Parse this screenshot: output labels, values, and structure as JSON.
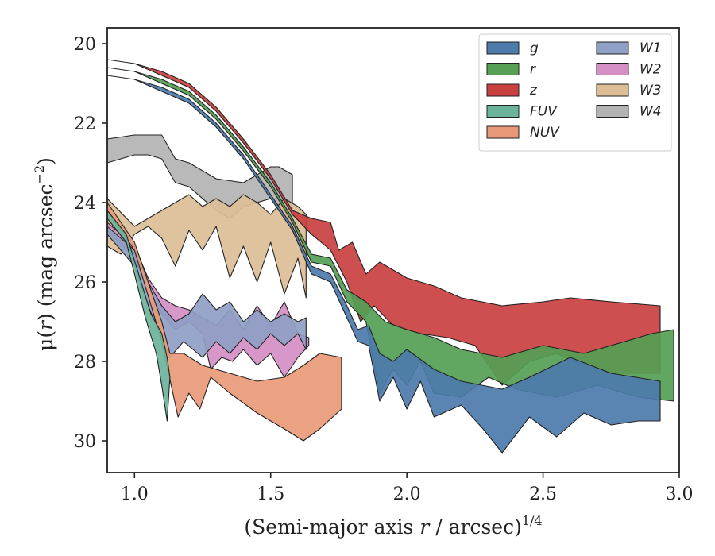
{
  "chart_data": {
    "type": "area",
    "xlabel": "(Semi-major axis r / arcsec)1/4",
    "xlabel_parts": {
      "main": "(Semi-major axis ",
      "var": "r",
      "rest": " / arcsec)",
      "sup": "1/4"
    },
    "ylabel_parts": {
      "mu": "μ(",
      "var": "r",
      "rest": ") (mag arcsec",
      "sup": "−2",
      "close": ")"
    },
    "xlim": [
      0.9,
      3.0
    ],
    "ylim": [
      30.8,
      19.6
    ],
    "y_inverted": true,
    "xticks": [
      1.0,
      1.5,
      2.0,
      2.5,
      3.0
    ],
    "xtick_labels": [
      "1.0",
      "1.5",
      "2.0",
      "2.5",
      "3.0"
    ],
    "yticks": [
      20,
      22,
      24,
      26,
      28,
      30
    ],
    "ytick_labels": [
      "20",
      "22",
      "24",
      "26",
      "28",
      "30"
    ],
    "grid": false,
    "legend_placement": "top-right",
    "legend_columns": 2,
    "series": [
      {
        "name": "g",
        "color": "#4c7bab",
        "upper": [
          [
            0.9,
            20.8
          ],
          [
            1.0,
            20.9
          ],
          [
            1.1,
            21.1
          ],
          [
            1.2,
            21.4
          ],
          [
            1.3,
            22.0
          ],
          [
            1.4,
            22.8
          ],
          [
            1.5,
            23.8
          ],
          [
            1.58,
            24.6
          ],
          [
            1.65,
            25.6
          ],
          [
            1.72,
            25.8
          ],
          [
            1.78,
            26.6
          ],
          [
            1.82,
            27.2
          ],
          [
            1.86,
            27.1
          ],
          [
            1.9,
            27.8
          ],
          [
            1.95,
            28.0
          ],
          [
            2.0,
            27.7
          ],
          [
            2.1,
            28.2
          ],
          [
            2.2,
            28.5
          ],
          [
            2.35,
            28.7
          ],
          [
            2.45,
            28.4
          ],
          [
            2.6,
            27.9
          ],
          [
            2.75,
            28.3
          ],
          [
            2.93,
            28.5
          ]
        ],
        "lower": [
          [
            0.9,
            20.8
          ],
          [
            1.0,
            20.9
          ],
          [
            1.1,
            21.2
          ],
          [
            1.2,
            21.5
          ],
          [
            1.3,
            22.1
          ],
          [
            1.4,
            22.9
          ],
          [
            1.5,
            23.9
          ],
          [
            1.58,
            24.7
          ],
          [
            1.65,
            25.8
          ],
          [
            1.72,
            26.0
          ],
          [
            1.78,
            26.9
          ],
          [
            1.82,
            27.5
          ],
          [
            1.86,
            27.6
          ],
          [
            1.9,
            29.0
          ],
          [
            1.95,
            28.4
          ],
          [
            2.0,
            29.2
          ],
          [
            2.05,
            28.5
          ],
          [
            2.1,
            29.4
          ],
          [
            2.2,
            29.1
          ],
          [
            2.28,
            29.7
          ],
          [
            2.35,
            30.3
          ],
          [
            2.45,
            29.4
          ],
          [
            2.55,
            29.9
          ],
          [
            2.65,
            29.3
          ],
          [
            2.75,
            29.6
          ],
          [
            2.85,
            29.5
          ],
          [
            2.93,
            29.5
          ]
        ]
      },
      {
        "name": "r",
        "color": "#55a054",
        "upper": [
          [
            0.9,
            20.6
          ],
          [
            1.0,
            20.7
          ],
          [
            1.1,
            20.9
          ],
          [
            1.2,
            21.2
          ],
          [
            1.3,
            21.8
          ],
          [
            1.4,
            22.6
          ],
          [
            1.5,
            23.5
          ],
          [
            1.58,
            24.4
          ],
          [
            1.65,
            25.3
          ],
          [
            1.72,
            25.4
          ],
          [
            1.78,
            26.2
          ],
          [
            1.85,
            26.5
          ],
          [
            1.92,
            27.0
          ],
          [
            2.0,
            27.2
          ],
          [
            2.1,
            27.4
          ],
          [
            2.2,
            27.7
          ],
          [
            2.35,
            27.9
          ],
          [
            2.5,
            27.6
          ],
          [
            2.65,
            27.8
          ],
          [
            2.8,
            27.5
          ],
          [
            2.9,
            27.3
          ],
          [
            2.98,
            27.2
          ]
        ],
        "lower": [
          [
            0.9,
            20.6
          ],
          [
            1.0,
            20.7
          ],
          [
            1.1,
            21.0
          ],
          [
            1.2,
            21.3
          ],
          [
            1.3,
            21.9
          ],
          [
            1.4,
            22.7
          ],
          [
            1.5,
            23.6
          ],
          [
            1.58,
            24.5
          ],
          [
            1.65,
            25.5
          ],
          [
            1.72,
            25.6
          ],
          [
            1.78,
            26.5
          ],
          [
            1.85,
            27.0
          ],
          [
            1.9,
            28.8
          ],
          [
            1.95,
            28.2
          ],
          [
            2.0,
            28.6
          ],
          [
            2.05,
            28.0
          ],
          [
            2.1,
            28.8
          ],
          [
            2.2,
            28.9
          ],
          [
            2.3,
            28.4
          ],
          [
            2.4,
            28.7
          ],
          [
            2.55,
            28.9
          ],
          [
            2.7,
            28.6
          ],
          [
            2.85,
            28.9
          ],
          [
            2.98,
            29.0
          ]
        ]
      },
      {
        "name": "z",
        "color": "#c94040",
        "upper": [
          [
            0.9,
            20.4
          ],
          [
            1.0,
            20.5
          ],
          [
            1.1,
            20.7
          ],
          [
            1.2,
            21.0
          ],
          [
            1.3,
            21.6
          ],
          [
            1.4,
            22.4
          ],
          [
            1.5,
            23.3
          ],
          [
            1.58,
            24.2
          ],
          [
            1.65,
            24.4
          ],
          [
            1.72,
            24.5
          ],
          [
            1.75,
            25.2
          ],
          [
            1.8,
            25.0
          ],
          [
            1.85,
            25.8
          ],
          [
            1.9,
            25.5
          ],
          [
            2.0,
            25.9
          ],
          [
            2.1,
            26.1
          ],
          [
            2.2,
            26.4
          ],
          [
            2.35,
            26.6
          ],
          [
            2.5,
            26.5
          ],
          [
            2.6,
            26.4
          ],
          [
            2.75,
            26.5
          ],
          [
            2.93,
            26.6
          ]
        ],
        "lower": [
          [
            0.9,
            20.4
          ],
          [
            1.0,
            20.5
          ],
          [
            1.1,
            20.8
          ],
          [
            1.2,
            21.1
          ],
          [
            1.3,
            21.7
          ],
          [
            1.4,
            22.5
          ],
          [
            1.5,
            23.4
          ],
          [
            1.58,
            24.3
          ],
          [
            1.65,
            24.8
          ],
          [
            1.72,
            25.2
          ],
          [
            1.78,
            26.0
          ],
          [
            1.83,
            27.0
          ],
          [
            1.88,
            26.6
          ],
          [
            1.95,
            27.1
          ],
          [
            2.05,
            27.3
          ],
          [
            2.15,
            27.4
          ],
          [
            2.25,
            27.6
          ],
          [
            2.35,
            28.6
          ],
          [
            2.45,
            28.0
          ],
          [
            2.55,
            27.8
          ],
          [
            2.7,
            28.3
          ],
          [
            2.93,
            28.3
          ]
        ]
      },
      {
        "name": "FUV",
        "color": "#6bb39a",
        "upper": [
          [
            0.9,
            24.2
          ],
          [
            0.97,
            24.8
          ],
          [
            1.02,
            25.9
          ],
          [
            1.06,
            26.8
          ],
          [
            1.1,
            27.3
          ],
          [
            1.12,
            27.9
          ],
          [
            1.13,
            28.4
          ]
        ],
        "lower": [
          [
            0.9,
            24.4
          ],
          [
            0.97,
            25.0
          ],
          [
            1.0,
            25.8
          ],
          [
            1.04,
            26.9
          ],
          [
            1.08,
            27.8
          ],
          [
            1.1,
            28.6
          ],
          [
            1.12,
            29.5
          ]
        ]
      },
      {
        "name": "NUV",
        "color": "#e89a78",
        "upper": [
          [
            0.9,
            24.0
          ],
          [
            1.0,
            25.0
          ],
          [
            1.1,
            27.0
          ],
          [
            1.13,
            27.8
          ],
          [
            1.18,
            27.8
          ],
          [
            1.25,
            28.1
          ],
          [
            1.35,
            28.3
          ],
          [
            1.45,
            28.5
          ],
          [
            1.55,
            28.4
          ],
          [
            1.62,
            28.1
          ],
          [
            1.68,
            27.8
          ],
          [
            1.76,
            27.9
          ]
        ],
        "lower": [
          [
            0.9,
            24.2
          ],
          [
            1.0,
            25.2
          ],
          [
            1.1,
            27.5
          ],
          [
            1.16,
            29.4
          ],
          [
            1.2,
            28.8
          ],
          [
            1.24,
            29.2
          ],
          [
            1.28,
            28.4
          ],
          [
            1.35,
            28.8
          ],
          [
            1.45,
            29.3
          ],
          [
            1.55,
            29.7
          ],
          [
            1.62,
            30.0
          ],
          [
            1.68,
            29.7
          ],
          [
            1.76,
            29.2
          ]
        ]
      },
      {
        "name": "W1",
        "color": "#8fa0c4",
        "upper": [
          [
            0.9,
            24.6
          ],
          [
            1.0,
            25.2
          ],
          [
            1.05,
            26.0
          ],
          [
            1.1,
            26.6
          ],
          [
            1.15,
            27.0
          ],
          [
            1.2,
            26.8
          ],
          [
            1.25,
            26.3
          ],
          [
            1.3,
            26.7
          ],
          [
            1.35,
            26.5
          ],
          [
            1.4,
            27.0
          ],
          [
            1.45,
            26.7
          ],
          [
            1.5,
            27.0
          ],
          [
            1.55,
            26.8
          ],
          [
            1.6,
            27.0
          ],
          [
            1.63,
            26.9
          ]
        ],
        "lower": [
          [
            0.9,
            24.8
          ],
          [
            1.0,
            25.6
          ],
          [
            1.05,
            26.6
          ],
          [
            1.1,
            27.4
          ],
          [
            1.13,
            27.9
          ],
          [
            1.18,
            27.5
          ],
          [
            1.25,
            27.9
          ],
          [
            1.3,
            27.5
          ],
          [
            1.35,
            27.8
          ],
          [
            1.4,
            27.4
          ],
          [
            1.45,
            27.7
          ],
          [
            1.5,
            27.3
          ],
          [
            1.55,
            27.6
          ],
          [
            1.6,
            27.3
          ],
          [
            1.63,
            27.7
          ]
        ]
      },
      {
        "name": "W2",
        "color": "#d48fc4",
        "upper": [
          [
            0.9,
            24.5
          ],
          [
            1.0,
            25.1
          ],
          [
            1.05,
            25.9
          ],
          [
            1.1,
            26.4
          ],
          [
            1.15,
            26.6
          ],
          [
            1.2,
            26.7
          ],
          [
            1.25,
            26.9
          ],
          [
            1.3,
            27.1
          ],
          [
            1.35,
            26.7
          ],
          [
            1.4,
            27.2
          ],
          [
            1.45,
            26.6
          ],
          [
            1.5,
            27.1
          ],
          [
            1.55,
            26.5
          ],
          [
            1.6,
            27.3
          ],
          [
            1.64,
            27.4
          ]
        ],
        "lower": [
          [
            0.9,
            24.7
          ],
          [
            1.0,
            25.4
          ],
          [
            1.05,
            26.2
          ],
          [
            1.1,
            26.8
          ],
          [
            1.15,
            27.2
          ],
          [
            1.2,
            27.0
          ],
          [
            1.25,
            27.3
          ],
          [
            1.28,
            28.2
          ],
          [
            1.32,
            27.9
          ],
          [
            1.36,
            28.0
          ],
          [
            1.4,
            27.7
          ],
          [
            1.45,
            28.1
          ],
          [
            1.5,
            27.8
          ],
          [
            1.55,
            28.4
          ],
          [
            1.6,
            27.9
          ],
          [
            1.64,
            27.6
          ]
        ]
      },
      {
        "name": "W3",
        "color": "#dcbd96",
        "upper": [
          [
            0.9,
            23.9
          ],
          [
            1.0,
            24.6
          ],
          [
            1.05,
            24.4
          ],
          [
            1.1,
            24.2
          ],
          [
            1.15,
            24.0
          ],
          [
            1.2,
            23.8
          ],
          [
            1.25,
            24.1
          ],
          [
            1.3,
            23.9
          ],
          [
            1.35,
            24.1
          ],
          [
            1.4,
            23.8
          ],
          [
            1.45,
            24.0
          ],
          [
            1.5,
            24.3
          ],
          [
            1.55,
            23.9
          ],
          [
            1.6,
            24.1
          ],
          [
            1.63,
            24.3
          ]
        ],
        "lower": [
          [
            0.9,
            25.1
          ],
          [
            0.95,
            25.3
          ],
          [
            1.0,
            24.8
          ],
          [
            1.05,
            24.6
          ],
          [
            1.1,
            24.9
          ],
          [
            1.15,
            25.6
          ],
          [
            1.2,
            24.7
          ],
          [
            1.25,
            25.2
          ],
          [
            1.3,
            24.6
          ],
          [
            1.35,
            25.9
          ],
          [
            1.4,
            25.1
          ],
          [
            1.45,
            26.0
          ],
          [
            1.5,
            25.0
          ],
          [
            1.55,
            26.3
          ],
          [
            1.6,
            25.4
          ],
          [
            1.63,
            26.4
          ]
        ]
      },
      {
        "name": "W4",
        "color": "#b3b3b3",
        "upper": [
          [
            0.9,
            22.4
          ],
          [
            1.0,
            22.3
          ],
          [
            1.05,
            22.3
          ],
          [
            1.1,
            22.3
          ],
          [
            1.15,
            22.9
          ],
          [
            1.2,
            23.0
          ],
          [
            1.3,
            23.4
          ],
          [
            1.4,
            23.5
          ],
          [
            1.5,
            23.1
          ],
          [
            1.53,
            23.1
          ],
          [
            1.58,
            23.3
          ]
        ],
        "lower": [
          [
            0.9,
            23.0
          ],
          [
            1.0,
            22.8
          ],
          [
            1.05,
            22.8
          ],
          [
            1.1,
            22.9
          ],
          [
            1.15,
            23.5
          ],
          [
            1.2,
            23.6
          ],
          [
            1.3,
            24.2
          ],
          [
            1.35,
            24.4
          ],
          [
            1.4,
            24.1
          ],
          [
            1.5,
            23.9
          ],
          [
            1.55,
            24.2
          ],
          [
            1.58,
            24.6
          ]
        ]
      }
    ]
  }
}
